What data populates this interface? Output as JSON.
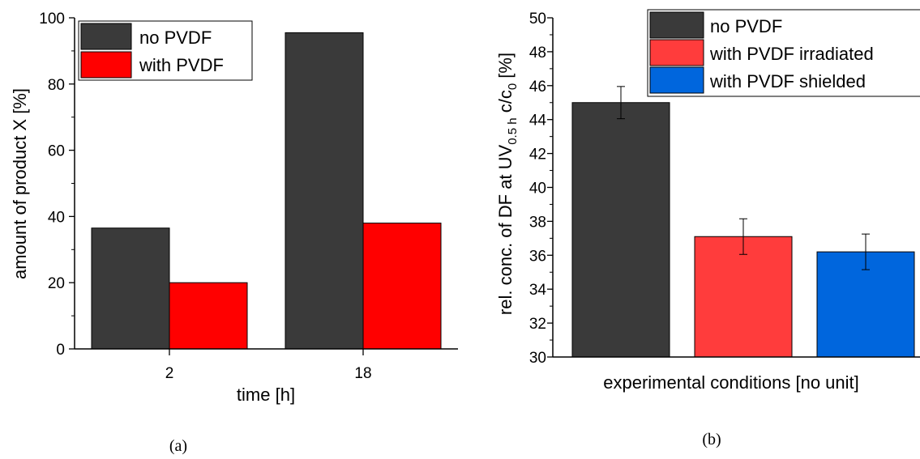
{
  "chart_data": [
    {
      "type": "bar",
      "panel_label": "(a)",
      "categories": [
        "2",
        "18"
      ],
      "series": [
        {
          "name": "no PVDF",
          "values": [
            36.5,
            95.5
          ],
          "color": "#3a3a3a"
        },
        {
          "name": "with PVDF",
          "values": [
            20,
            38
          ],
          "color": "#ff0000"
        }
      ],
      "xlabel": "time [h]",
      "ylabel": "amount of product X [%]",
      "ylim": [
        0,
        100
      ],
      "yticks": [
        0,
        20,
        40,
        60,
        80,
        100
      ],
      "legend": "top-left"
    },
    {
      "type": "bar",
      "panel_label": "(b)",
      "categories": [
        "no PVDF",
        "with PVDF irradiated",
        "with PVDF shielded"
      ],
      "values": [
        45,
        37.1,
        36.2
      ],
      "errors": [
        0.95,
        1.05,
        1.05
      ],
      "colors": [
        "#3a3a3a",
        "#ff3c3c",
        "#0066dd"
      ],
      "xlabel": "experimental conditions [no unit]",
      "ylabel": {
        "main": "rel. conc. of DF at UV",
        "sub1": "0.5 h",
        "mid": " c/c",
        "sub2": "0",
        "tail": " [%]"
      },
      "ylim": [
        30,
        50
      ],
      "yticks": [
        30,
        32,
        34,
        36,
        38,
        40,
        42,
        44,
        46,
        48,
        50
      ],
      "legend": "top-right"
    }
  ]
}
